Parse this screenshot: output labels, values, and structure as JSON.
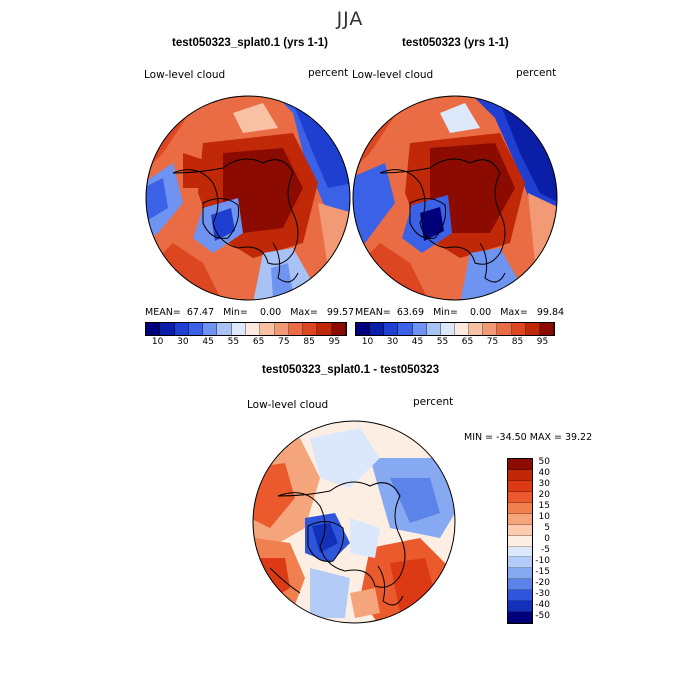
{
  "figure": {
    "season": "JJA",
    "colors": {
      "scale": [
        "#00007a",
        "#0a1ea8",
        "#1f3fd0",
        "#3b62e6",
        "#6f93f0",
        "#a8c2f6",
        "#dde8fb",
        "#fde9dd",
        "#f8c1a4",
        "#f29a75",
        "#ea6c45",
        "#dc4620",
        "#c02808",
        "#8c0b00"
      ],
      "land_outline": "#000000"
    },
    "panels": [
      {
        "id": "model",
        "title": "test050323_splat0.1 (yrs 1-1)",
        "variable": "Low-level cloud",
        "units": "percent",
        "stats": {
          "mean_label": "MEAN=",
          "mean": "67.47",
          "min_label": "Min=",
          "min": "0.00",
          "max_label": "Max=",
          "max": "99.57"
        }
      },
      {
        "id": "obs",
        "title": "test050323 (yrs 1-1)",
        "variable": "Low-level cloud",
        "units": "percent",
        "stats": {
          "mean_label": "MEAN=",
          "mean": "63.69",
          "min_label": "Min=",
          "min": "0.00",
          "max_label": "Max=",
          "max": "99.84"
        }
      }
    ],
    "colorbar_top": {
      "ticks": [
        "10",
        "30",
        "45",
        "55",
        "65",
        "75",
        "85",
        "95"
      ]
    },
    "difference": {
      "title": "test050323_splat0.1 - test050323",
      "variable": "Low-level cloud",
      "units": "percent",
      "minmax_text": "MIN = -34.50  MAX =  39.22",
      "colorbar_levels": [
        "50",
        "40",
        "30",
        "20",
        "15",
        "10",
        "5",
        "0",
        "-5",
        "-10",
        "-15",
        "-20",
        "-30",
        "-40",
        "-50"
      ],
      "colorbar_colors": [
        "#8c0b00",
        "#c02808",
        "#dc3a14",
        "#ea5a2c",
        "#f0804f",
        "#f5a57c",
        "#fac9ae",
        "#fdeee4",
        "#dbe8fb",
        "#b2ccf7",
        "#87a9f1",
        "#5b83ea",
        "#2f55dc",
        "#1230b8",
        "#00007a"
      ]
    }
  }
}
